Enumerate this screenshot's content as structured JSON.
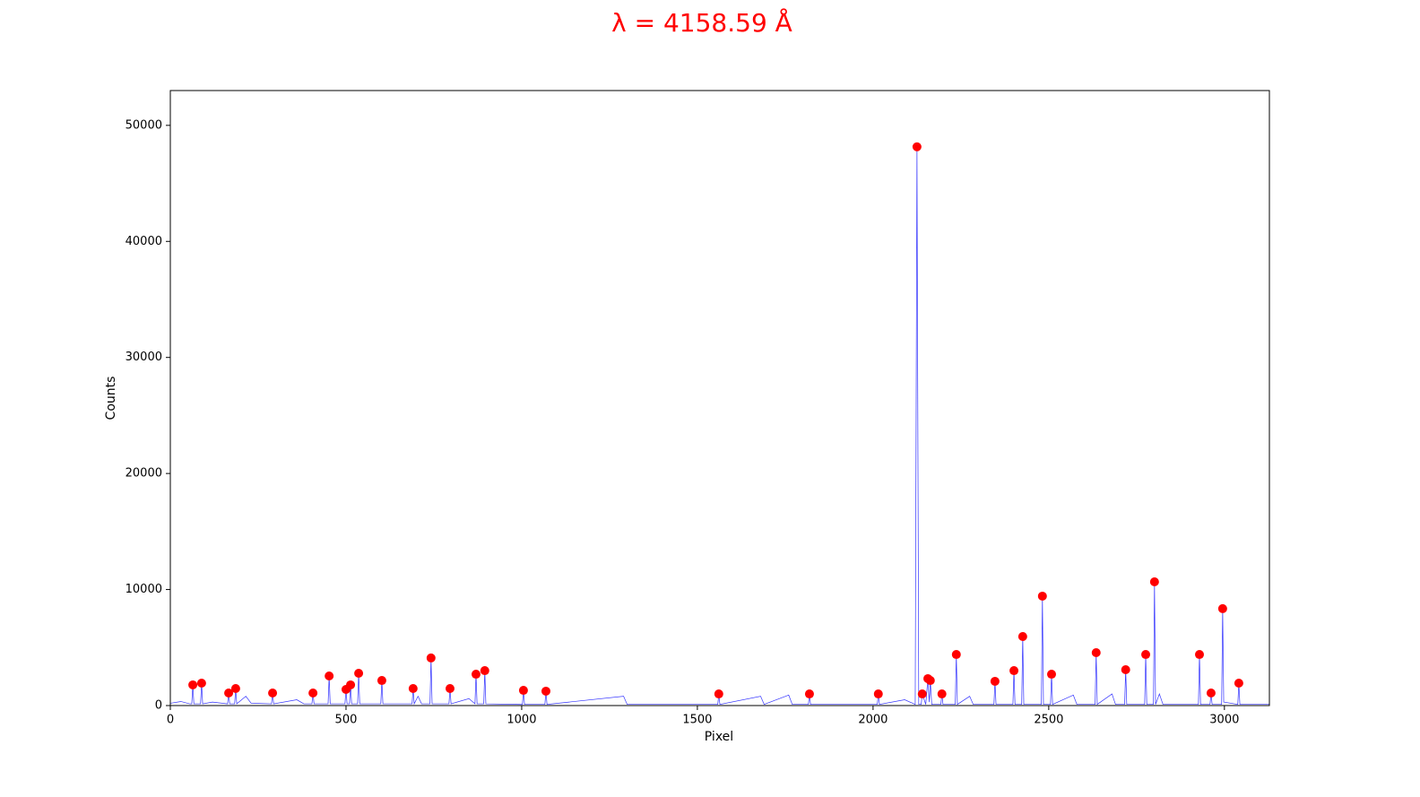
{
  "chart_data": {
    "type": "line",
    "title": "λ = 4158.59 Å",
    "xlabel": "Pixel",
    "ylabel": "Counts",
    "xlim": [
      0,
      3128
    ],
    "ylim": [
      0,
      53000
    ],
    "xticks": [
      0,
      500,
      1000,
      1500,
      2000,
      2500,
      3000
    ],
    "yticks": [
      0,
      10000,
      20000,
      30000,
      40000,
      50000
    ],
    "grid": false,
    "series": [
      {
        "type": "line",
        "color": "#0000ff",
        "x": [
          0,
          30,
          55,
          61,
          64,
          67,
          86,
          89,
          92,
          120,
          163,
          166,
          169,
          183,
          186,
          189,
          215,
          230,
          288,
          291,
          294,
          360,
          380,
          403,
          406,
          409,
          449,
          452,
          455,
          497,
          500,
          503,
          510,
          513,
          516,
          533,
          536,
          539,
          599,
          602,
          605,
          688,
          691,
          694,
          705,
          715,
          739,
          742,
          745,
          793,
          796,
          799,
          850,
          867,
          870,
          873,
          892,
          895,
          898,
          1002,
          1005,
          1008,
          1066,
          1069,
          1072,
          1290,
          1300,
          1558,
          1561,
          1564,
          1680,
          1690,
          1760,
          1770,
          1816,
          1819,
          1822,
          2012,
          2015,
          2018,
          2090,
          2120,
          2125,
          2130,
          2137,
          2140,
          2150,
          2156,
          2160,
          2163,
          2167,
          2193,
          2196,
          2199,
          2234,
          2237,
          2240,
          2275,
          2285,
          2344,
          2347,
          2350,
          2398,
          2401,
          2404,
          2423,
          2426,
          2429,
          2479,
          2482,
          2485,
          2505,
          2508,
          2511,
          2570,
          2580,
          2632,
          2635,
          2638,
          2680,
          2690,
          2716,
          2719,
          2722,
          2773,
          2776,
          2779,
          2798,
          2801,
          2804,
          2815,
          2825,
          2926,
          2929,
          2932,
          2959,
          2962,
          2965,
          2992,
          2995,
          2998,
          3038,
          3041,
          3044,
          3128
        ],
        "values": [
          200,
          350,
          150,
          150,
          1780,
          150,
          150,
          1930,
          150,
          300,
          150,
          1080,
          150,
          150,
          1470,
          150,
          800,
          200,
          150,
          1080,
          150,
          500,
          150,
          150,
          1080,
          150,
          150,
          2550,
          150,
          150,
          1390,
          150,
          150,
          1780,
          150,
          150,
          2780,
          150,
          150,
          2160,
          150,
          150,
          1470,
          150,
          800,
          150,
          150,
          4100,
          150,
          150,
          1470,
          150,
          600,
          150,
          2700,
          150,
          150,
          3010,
          150,
          100,
          1310,
          100,
          100,
          1240,
          100,
          800,
          100,
          100,
          1000,
          100,
          800,
          100,
          900,
          100,
          100,
          1000,
          100,
          100,
          1000,
          100,
          500,
          100,
          48150,
          100,
          100,
          1000,
          100,
          2320,
          300,
          2160,
          100,
          100,
          1000,
          100,
          100,
          4400,
          100,
          800,
          100,
          100,
          2090,
          100,
          100,
          3010,
          100,
          100,
          5950,
          100,
          100,
          9430,
          100,
          100,
          2700,
          100,
          900,
          100,
          100,
          4560,
          100,
          1000,
          100,
          100,
          3090,
          100,
          100,
          4400,
          100,
          100,
          10660,
          100,
          1000,
          100,
          100,
          4400,
          100,
          100,
          1080,
          100,
          100,
          8350,
          300,
          100,
          1930,
          100,
          100
        ]
      },
      {
        "type": "scatter",
        "color": "#ff0000",
        "x": [
          64,
          89,
          166,
          186,
          291,
          406,
          452,
          500,
          513,
          536,
          602,
          691,
          742,
          796,
          870,
          895,
          1005,
          1069,
          1561,
          1819,
          2015,
          2125,
          2140,
          2156,
          2163,
          2196,
          2237,
          2347,
          2401,
          2426,
          2482,
          2508,
          2635,
          2719,
          2776,
          2801,
          2929,
          2962,
          2995,
          3041
        ],
        "values": [
          1780,
          1930,
          1080,
          1470,
          1080,
          1080,
          2550,
          1390,
          1780,
          2780,
          2160,
          1470,
          4100,
          1470,
          2700,
          3010,
          1310,
          1240,
          1000,
          1000,
          1000,
          48150,
          1000,
          2320,
          2160,
          1000,
          4400,
          2090,
          3010,
          5950,
          9430,
          2700,
          4560,
          3090,
          4400,
          10660,
          4400,
          1080,
          8350,
          1930
        ]
      }
    ]
  }
}
